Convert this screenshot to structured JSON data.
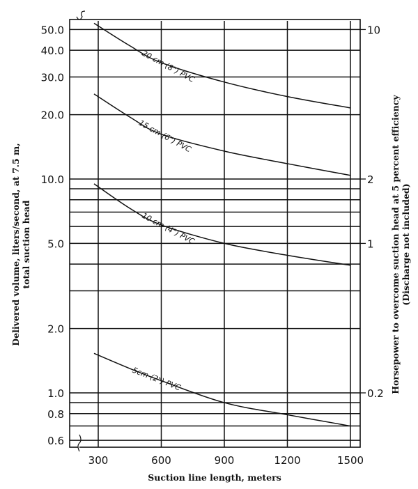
{
  "chart_data": {
    "type": "line",
    "xlabel": "Suction line length, meters",
    "ylabel_lines": [
      "Delivered volume, liters/second, at 7.5 m,",
      "total suction head"
    ],
    "y2label_lines": [
      "Horsepower to overcome suction head at 5 percent efficiency",
      "(Discharge not included)"
    ],
    "x_ticks": [
      "300",
      "600",
      "900",
      "1200",
      "1500"
    ],
    "x_tick_values": [
      300,
      600,
      900,
      1200,
      1500
    ],
    "y_scale": "log",
    "ylim": [
      0.6,
      55
    ],
    "y_ticks": [
      {
        "label": "50.0",
        "value": 50
      },
      {
        "label": "40.0",
        "value": 40
      },
      {
        "label": "30.0",
        "value": 30
      },
      {
        "label": "20.0",
        "value": 20
      },
      {
        "label": "10.0",
        "value": 10
      },
      {
        "label": "5.0",
        "value": 5
      },
      {
        "label": "2.0",
        "value": 2
      },
      {
        "label": "1.0",
        "value": 1
      },
      {
        "label": "0.8",
        "value": 0.8
      },
      {
        "label": "0.6",
        "value": 0.6
      }
    ],
    "y_gridlines": [
      50,
      40,
      30,
      20,
      10,
      9,
      8,
      7,
      6,
      5,
      4,
      3,
      2,
      1,
      0.9,
      0.8,
      0.7,
      0.6
    ],
    "y2_ticks": [
      {
        "label": "10",
        "value": 10,
        "left_equivalent": 50
      },
      {
        "label": "2",
        "value": 2,
        "left_equivalent": 10
      },
      {
        "label": "1",
        "value": 1,
        "left_equivalent": 5
      },
      {
        "label": "0.2",
        "value": 0.2,
        "left_equivalent": 1
      }
    ],
    "grid": true,
    "series": [
      {
        "name": "20 cm (8\") PVC",
        "x": [
          280,
          450,
          600,
          900,
          1200,
          1500
        ],
        "y": [
          53.5,
          42,
          35,
          28.4,
          24.3,
          21.5
        ]
      },
      {
        "name": "15 cm (6\") PVC",
        "x": [
          280,
          450,
          600,
          900,
          1200,
          1500
        ],
        "y": [
          25,
          19.5,
          16.2,
          13.5,
          11.8,
          10.4
        ]
      },
      {
        "name": "10 cm (4\") PVC",
        "x": [
          280,
          450,
          600,
          900,
          1200,
          1500
        ],
        "y": [
          9.5,
          7.3,
          6.1,
          5.0,
          4.4,
          3.95
        ]
      },
      {
        "name": "5cm (2\") PVC",
        "x": [
          280,
          450,
          600,
          900,
          1200,
          1500
        ],
        "y": [
          1.53,
          1.3,
          1.14,
          0.9,
          0.79,
          0.7
        ]
      }
    ]
  }
}
